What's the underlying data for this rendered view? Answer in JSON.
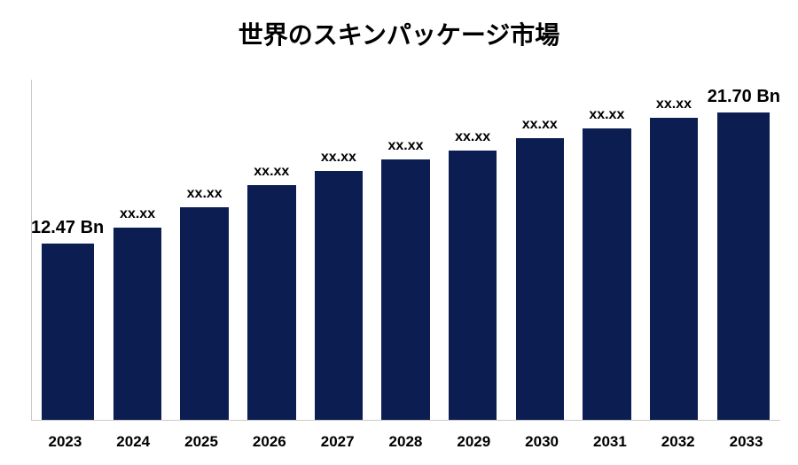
{
  "chart": {
    "type": "bar",
    "title": "世界のスキンパッケージ市場",
    "title_fontsize": 28,
    "title_fontweight": 700,
    "background_color": "#ffffff",
    "bar_color": "#0b1d51",
    "axis_line_color": "#c9c9c9",
    "ymax": 24,
    "ymin": 0,
    "label_fontsize": 16,
    "endpoint_label_fontsize": 20,
    "xtick_fontsize": 17,
    "bars": [
      {
        "category": "2023",
        "value": 12.47,
        "label": "12.47 Bn",
        "endpoint": true
      },
      {
        "category": "2024",
        "value": 13.6,
        "label": "xx.xx",
        "endpoint": false
      },
      {
        "category": "2025",
        "value": 15.0,
        "label": "xx.xx",
        "endpoint": false
      },
      {
        "category": "2026",
        "value": 16.6,
        "label": "xx.xx",
        "endpoint": false
      },
      {
        "category": "2027",
        "value": 17.6,
        "label": "xx.xx",
        "endpoint": false
      },
      {
        "category": "2028",
        "value": 18.4,
        "label": "xx.xx",
        "endpoint": false
      },
      {
        "category": "2029",
        "value": 19.0,
        "label": "xx.xx",
        "endpoint": false
      },
      {
        "category": "2030",
        "value": 19.9,
        "label": "xx.xx",
        "endpoint": false
      },
      {
        "category": "2031",
        "value": 20.6,
        "label": "xx.xx",
        "endpoint": false
      },
      {
        "category": "2032",
        "value": 21.3,
        "label": "xx.xx",
        "endpoint": false
      },
      {
        "category": "2033",
        "value": 21.7,
        "label": "21.70 Bn",
        "endpoint": true
      }
    ]
  }
}
